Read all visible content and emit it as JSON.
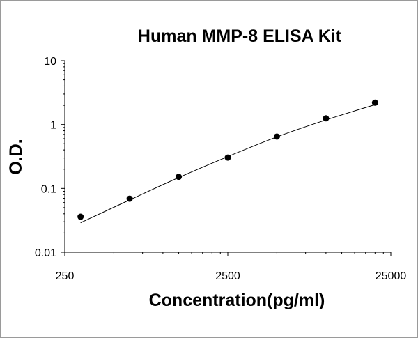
{
  "chart_data": {
    "type": "scatter",
    "title": "Human MMP-8 ELISA Kit",
    "xlabel": "Concentration(pg/ml)",
    "ylabel": "O.D.",
    "x_scale": "log",
    "y_scale": "log",
    "xlim": [
      250,
      25000
    ],
    "ylim": [
      0.01,
      10
    ],
    "x_ticks": [
      "250",
      "2500",
      "25000"
    ],
    "y_ticks": [
      "10",
      "1",
      "0.1",
      "0.01"
    ],
    "grid": false,
    "legend": "none",
    "series": [
      {
        "marker": "circle",
        "x": [
          312.5,
          625,
          1250,
          2500,
          5000,
          10000,
          20000
        ],
        "y": [
          0.036,
          0.069,
          0.152,
          0.304,
          0.648,
          1.25,
          2.2
        ]
      }
    ],
    "fit_curve": {
      "x": [
        312.5,
        625,
        1250,
        2500,
        5000,
        10000,
        20000
      ],
      "y": [
        0.029,
        0.066,
        0.148,
        0.315,
        0.64,
        1.18,
        2.05
      ]
    }
  }
}
